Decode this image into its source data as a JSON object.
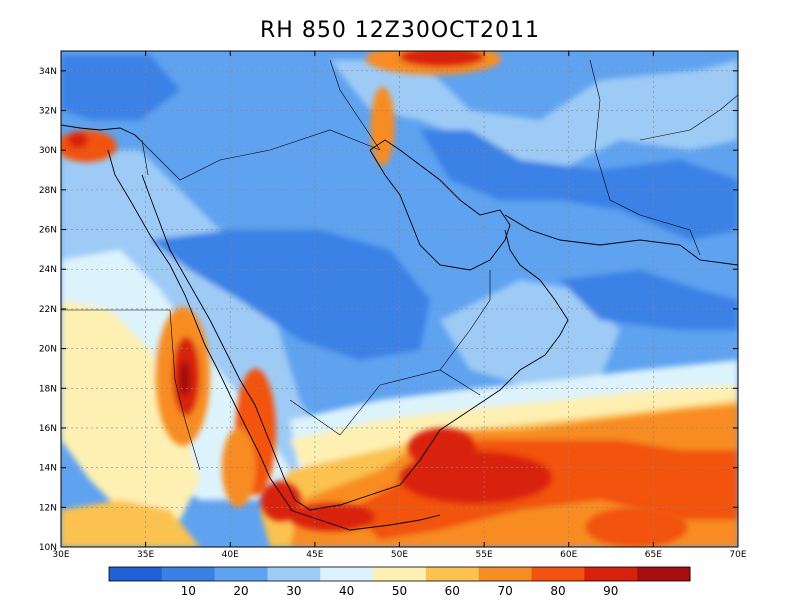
{
  "title": "RH 850 12Z30OCT2011",
  "map": {
    "lon_range": [
      30,
      70
    ],
    "lat_range": [
      10,
      35
    ],
    "lon_ticks": [
      {
        "value": 30,
        "label": "30E"
      },
      {
        "value": 35,
        "label": "35E"
      },
      {
        "value": 40,
        "label": "40E"
      },
      {
        "value": 45,
        "label": "45E"
      },
      {
        "value": 50,
        "label": "50E"
      },
      {
        "value": 55,
        "label": "55E"
      },
      {
        "value": 60,
        "label": "60E"
      },
      {
        "value": 65,
        "label": "65E"
      },
      {
        "value": 70,
        "label": "70E"
      }
    ],
    "lat_ticks": [
      {
        "value": 10,
        "label": "10N"
      },
      {
        "value": 12,
        "label": "12N"
      },
      {
        "value": 14,
        "label": "14N"
      },
      {
        "value": 16,
        "label": "16N"
      },
      {
        "value": 18,
        "label": "18N"
      },
      {
        "value": 20,
        "label": "20N"
      },
      {
        "value": 22,
        "label": "22N"
      },
      {
        "value": 24,
        "label": "24N"
      },
      {
        "value": 26,
        "label": "26N"
      },
      {
        "value": 28,
        "label": "28N"
      },
      {
        "value": 30,
        "label": "30N"
      },
      {
        "value": 32,
        "label": "32N"
      },
      {
        "value": 34,
        "label": "34N"
      }
    ],
    "grid": true,
    "field_blobs": [
      {
        "lon": 37.2,
        "lat": 18.6,
        "rx": 1.6,
        "ry": 3.5,
        "level": 4
      },
      {
        "lon": 37.4,
        "lat": 18.6,
        "rx": 0.8,
        "ry": 2.0,
        "level": 6
      },
      {
        "lon": 37.3,
        "lat": 18.5,
        "rx": 0.35,
        "ry": 0.9,
        "level": 7
      },
      {
        "lon": 41.5,
        "lat": 15.8,
        "rx": 1.2,
        "ry": 3.2,
        "level": 5
      },
      {
        "lon": 40.5,
        "lat": 14.0,
        "rx": 1.0,
        "ry": 2.0,
        "level": 4
      },
      {
        "lon": 52.0,
        "lat": 34.6,
        "rx": 4.0,
        "ry": 0.8,
        "level": 4
      },
      {
        "lon": 52.5,
        "lat": 34.7,
        "rx": 2.5,
        "ry": 0.5,
        "level": 6
      },
      {
        "lon": 31.5,
        "lat": 30.2,
        "rx": 1.8,
        "ry": 0.8,
        "level": 5
      },
      {
        "lon": 31.0,
        "lat": 30.5,
        "rx": 0.6,
        "ry": 0.4,
        "level": 6
      },
      {
        "lon": 49.0,
        "lat": 31.2,
        "rx": 0.7,
        "ry": 2.0,
        "level": 4
      },
      {
        "lon": 54.5,
        "lat": 13.5,
        "rx": 4.5,
        "ry": 1.3,
        "level": 6
      },
      {
        "lon": 52.5,
        "lat": 15.0,
        "rx": 2.0,
        "ry": 1.0,
        "level": 6
      },
      {
        "lon": 64.0,
        "lat": 11.0,
        "rx": 3.0,
        "ry": 1.0,
        "level": 5
      },
      {
        "lon": 46.0,
        "lat": 11.5,
        "rx": 2.5,
        "ry": 0.7,
        "level": 6
      },
      {
        "lon": 43.0,
        "lat": 12.3,
        "rx": 1.2,
        "ry": 1.0,
        "level": 6
      }
    ]
  },
  "colorbar": {
    "colors": [
      "#1f62d8",
      "#3a81e6",
      "#5fa2f0",
      "#9ecbf6",
      "#ddf3fc",
      "#fdf0b2",
      "#fbc250",
      "#f88c24",
      "#f25310",
      "#d8210c",
      "#a60f0f"
    ],
    "labels": [
      "10",
      "20",
      "30",
      "40",
      "50",
      "60",
      "70",
      "80",
      "90"
    ],
    "bounds": [
      10,
      20,
      30,
      40,
      50,
      60,
      70,
      80,
      90
    ]
  }
}
